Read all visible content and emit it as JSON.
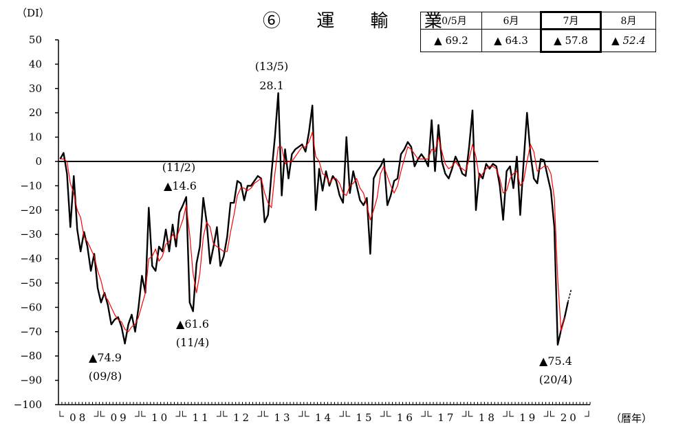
{
  "title": "⑥ 運 輸 業",
  "unit_label": "（DI）",
  "x_unit_label": "（暦年）",
  "summary_table": {
    "headers": [
      "20/5月",
      "6月",
      "7月",
      "8月"
    ],
    "values": [
      "▲ 69.2",
      "▲ 64.3",
      "▲ 57.8",
      "▲ 52.4"
    ],
    "highlighted_column": "7月",
    "italic_column": "8月"
  },
  "annotations": [
    {
      "text": "▲74.9",
      "date": "(09/8)"
    },
    {
      "text": "▲61.6",
      "date": "(11/4)"
    },
    {
      "text": "(11/2)",
      "value": "▲14.6"
    },
    {
      "text": "(13/5)",
      "value": "28.1"
    },
    {
      "text": "▲75.4",
      "date": "(20/4)"
    }
  ],
  "colors": {
    "monthly": "#000000",
    "moving_average": "#ff0000",
    "axis": "#000000"
  },
  "chart_data": {
    "type": "line",
    "ylim": [
      -100,
      50
    ],
    "yticks": [
      50,
      40,
      30,
      20,
      10,
      0,
      -10,
      -20,
      -30,
      -40,
      -50,
      -60,
      -70,
      -80,
      -90,
      -100
    ],
    "x_tick_labels": [
      "08",
      "09",
      "10",
      "11",
      "12",
      "13",
      "14",
      "15",
      "16",
      "17",
      "18",
      "19",
      "20"
    ],
    "x_start": "2008-01",
    "grid": false,
    "series": [
      {
        "style": "solid-black",
        "values": [
          1,
          3.5,
          -5,
          -27,
          -6,
          -28,
          -37,
          -29,
          -35,
          -45,
          -38,
          -52,
          -58,
          -54,
          -59,
          -67,
          -65,
          -64,
          -68,
          -74.9,
          -67,
          -63,
          -70,
          -60,
          -47,
          -54,
          -19,
          -43,
          -45,
          -35,
          -37,
          -28,
          -37,
          -26,
          -35,
          -21,
          -18,
          -14.6,
          -58,
          -61.6,
          -42,
          -35,
          -15,
          -25,
          -42,
          -35,
          -27,
          -43,
          -39,
          -31,
          -17,
          -17,
          -8,
          -9,
          -16,
          -10,
          -10,
          -8,
          -6,
          -7,
          -25,
          -22,
          -5,
          10,
          28.1,
          -14,
          5,
          -7,
          3,
          5,
          6,
          7,
          4,
          12,
          23,
          -20,
          -3,
          -12,
          -4,
          -10,
          -6,
          -8,
          -14,
          -17,
          10,
          -13,
          -4,
          -10,
          -16,
          -18,
          -15,
          -38,
          -7,
          -4,
          -2,
          1,
          -18,
          -14,
          -8,
          -7,
          3,
          5,
          8,
          6,
          -2,
          1,
          3,
          1,
          -2,
          17,
          -4,
          15,
          0,
          -5,
          -7,
          -3,
          2,
          -1,
          -5,
          -6,
          6,
          21,
          -20,
          -5,
          -7,
          -1,
          -3,
          -1,
          -2,
          -10,
          -24,
          -4,
          -2,
          -11,
          2,
          -22,
          0,
          20,
          3,
          -7,
          -9,
          1,
          0.5,
          -6,
          -12,
          -27,
          -75.4,
          -69.2,
          -64.3,
          -57.8
        ]
      },
      {
        "style": "dashed-black",
        "values": [
          -57.8,
          -52.4
        ]
      },
      {
        "style": "thin-red",
        "values": [
          1,
          1,
          0,
          -9,
          -13,
          -20,
          -23,
          -31,
          -33,
          -36,
          -39,
          -45,
          -49,
          -55,
          -57,
          -60,
          -63,
          -65,
          -66,
          -69,
          -70,
          -68,
          -67,
          -64,
          -59,
          -54,
          -40,
          -39,
          -36,
          -41,
          -39,
          -34,
          -33,
          -30,
          -32,
          -28,
          -24,
          -18,
          -30,
          -46,
          -54,
          -46,
          -31,
          -25,
          -27,
          -34,
          -35,
          -36,
          -37,
          -37,
          -29,
          -22,
          -14,
          -11,
          -11,
          -12,
          -11,
          -9,
          -8,
          -7,
          -13,
          -17,
          -19,
          -5,
          6,
          6,
          -1,
          0,
          0,
          2,
          4,
          6,
          6,
          8,
          12,
          2,
          0,
          -5,
          -6,
          -9,
          -7,
          -7,
          -9,
          -13,
          -14,
          -10,
          -9,
          -7,
          -11,
          -13,
          -18,
          -24,
          -20,
          -15,
          -5,
          -2,
          -6,
          -10,
          -13,
          -10,
          -4,
          1,
          6,
          5,
          3,
          1,
          1,
          1,
          1,
          5,
          4,
          10,
          4,
          -1,
          -3,
          -2,
          0,
          -2,
          -3,
          -4,
          1,
          7,
          2,
          -7,
          -5,
          -3,
          -2,
          -2,
          -3,
          -7,
          -13,
          -12,
          -7,
          -5,
          -4,
          -10,
          -8,
          0,
          7,
          4,
          -4,
          -3,
          -2,
          -2,
          -5,
          -15,
          -48,
          -70,
          -64
        ]
      }
    ]
  }
}
